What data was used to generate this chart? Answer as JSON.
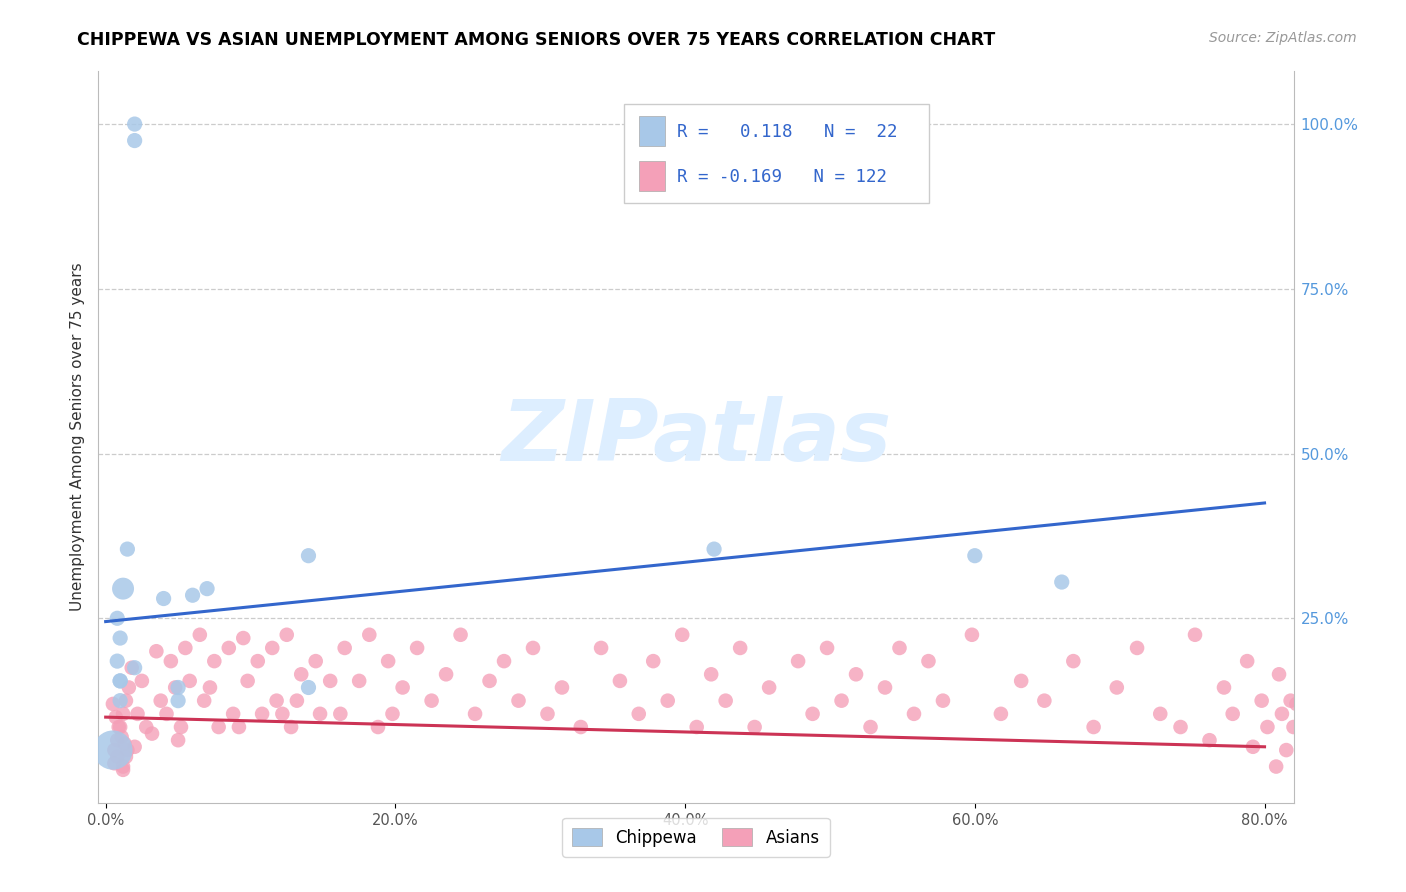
{
  "title": "CHIPPEWA VS ASIAN UNEMPLOYMENT AMONG SENIORS OVER 75 YEARS CORRELATION CHART",
  "source": "Source: ZipAtlas.com",
  "xlabel_ticks": [
    "0.0%",
    "",
    "",
    "",
    "80.0%"
  ],
  "ylabel_ticks_right": [
    "100.0%",
    "75.0%",
    "50.0%",
    "25.0%",
    ""
  ],
  "xlim": [
    -0.005,
    0.82
  ],
  "ylim": [
    -0.03,
    1.08
  ],
  "chippewa_R": 0.118,
  "chippewa_N": 22,
  "asian_R": -0.169,
  "asian_N": 122,
  "chippewa_color": "#a8c8e8",
  "asian_color": "#f4a0b8",
  "chippewa_line_color": "#3366cc",
  "asian_line_color": "#cc3355",
  "legend_text_color": "#3366cc",
  "right_axis_color": "#5599dd",
  "watermark_color": "#ddeeff",
  "chippewa_x": [
    0.02,
    0.02,
    0.07,
    0.04,
    0.015,
    0.012,
    0.008,
    0.01,
    0.008,
    0.01,
    0.01,
    0.05,
    0.05,
    0.06,
    0.14,
    0.14,
    0.42,
    0.6,
    0.66,
    0.01,
    0.02,
    0.005
  ],
  "chippewa_y": [
    1.0,
    0.975,
    0.295,
    0.28,
    0.355,
    0.295,
    0.25,
    0.22,
    0.185,
    0.155,
    0.125,
    0.125,
    0.145,
    0.285,
    0.345,
    0.145,
    0.355,
    0.345,
    0.305,
    0.155,
    0.175,
    0.05
  ],
  "chippewa_size": [
    120,
    120,
    120,
    120,
    120,
    250,
    120,
    120,
    120,
    120,
    120,
    120,
    120,
    120,
    120,
    120,
    120,
    120,
    120,
    120,
    120,
    800
  ],
  "asian_x": [
    0.005,
    0.007,
    0.009,
    0.011,
    0.013,
    0.015,
    0.008,
    0.006,
    0.012,
    0.018,
    0.016,
    0.014,
    0.012,
    0.01,
    0.008,
    0.006,
    0.014,
    0.012,
    0.025,
    0.022,
    0.028,
    0.02,
    0.035,
    0.038,
    0.032,
    0.045,
    0.048,
    0.042,
    0.05,
    0.055,
    0.058,
    0.052,
    0.065,
    0.068,
    0.075,
    0.072,
    0.078,
    0.085,
    0.088,
    0.095,
    0.098,
    0.092,
    0.105,
    0.108,
    0.115,
    0.118,
    0.125,
    0.122,
    0.135,
    0.132,
    0.128,
    0.145,
    0.148,
    0.155,
    0.165,
    0.162,
    0.175,
    0.182,
    0.188,
    0.195,
    0.198,
    0.205,
    0.215,
    0.225,
    0.235,
    0.245,
    0.255,
    0.265,
    0.275,
    0.285,
    0.295,
    0.305,
    0.315,
    0.328,
    0.342,
    0.355,
    0.368,
    0.378,
    0.388,
    0.398,
    0.408,
    0.418,
    0.428,
    0.438,
    0.448,
    0.458,
    0.478,
    0.488,
    0.498,
    0.508,
    0.518,
    0.528,
    0.538,
    0.548,
    0.558,
    0.568,
    0.578,
    0.598,
    0.618,
    0.632,
    0.648,
    0.668,
    0.682,
    0.698,
    0.712,
    0.728,
    0.742,
    0.752,
    0.762,
    0.772,
    0.778,
    0.788,
    0.792,
    0.798,
    0.802,
    0.808,
    0.81,
    0.812,
    0.815,
    0.818,
    0.82,
    0.822
  ],
  "asian_y": [
    0.12,
    0.1,
    0.085,
    0.07,
    0.06,
    0.05,
    0.04,
    0.03,
    0.02,
    0.175,
    0.145,
    0.125,
    0.105,
    0.085,
    0.065,
    0.05,
    0.04,
    0.025,
    0.155,
    0.105,
    0.085,
    0.055,
    0.2,
    0.125,
    0.075,
    0.185,
    0.145,
    0.105,
    0.065,
    0.205,
    0.155,
    0.085,
    0.225,
    0.125,
    0.185,
    0.145,
    0.085,
    0.205,
    0.105,
    0.22,
    0.155,
    0.085,
    0.185,
    0.105,
    0.205,
    0.125,
    0.225,
    0.105,
    0.165,
    0.125,
    0.085,
    0.185,
    0.105,
    0.155,
    0.205,
    0.105,
    0.155,
    0.225,
    0.085,
    0.185,
    0.105,
    0.145,
    0.205,
    0.125,
    0.165,
    0.225,
    0.105,
    0.155,
    0.185,
    0.125,
    0.205,
    0.105,
    0.145,
    0.085,
    0.205,
    0.155,
    0.105,
    0.185,
    0.125,
    0.225,
    0.085,
    0.165,
    0.125,
    0.205,
    0.085,
    0.145,
    0.185,
    0.105,
    0.205,
    0.125,
    0.165,
    0.085,
    0.145,
    0.205,
    0.105,
    0.185,
    0.125,
    0.225,
    0.105,
    0.155,
    0.125,
    0.185,
    0.085,
    0.145,
    0.205,
    0.105,
    0.085,
    0.225,
    0.065,
    0.145,
    0.105,
    0.185,
    0.055,
    0.125,
    0.085,
    0.025,
    0.165,
    0.105,
    0.05,
    0.125,
    0.085,
    0.12
  ],
  "chip_line_x0": 0.0,
  "chip_line_x1": 0.8,
  "chip_line_y0": 0.245,
  "chip_line_y1": 0.425,
  "asian_line_x0": 0.0,
  "asian_line_x1": 0.8,
  "asian_line_y0": 0.1,
  "asian_line_y1": 0.055
}
